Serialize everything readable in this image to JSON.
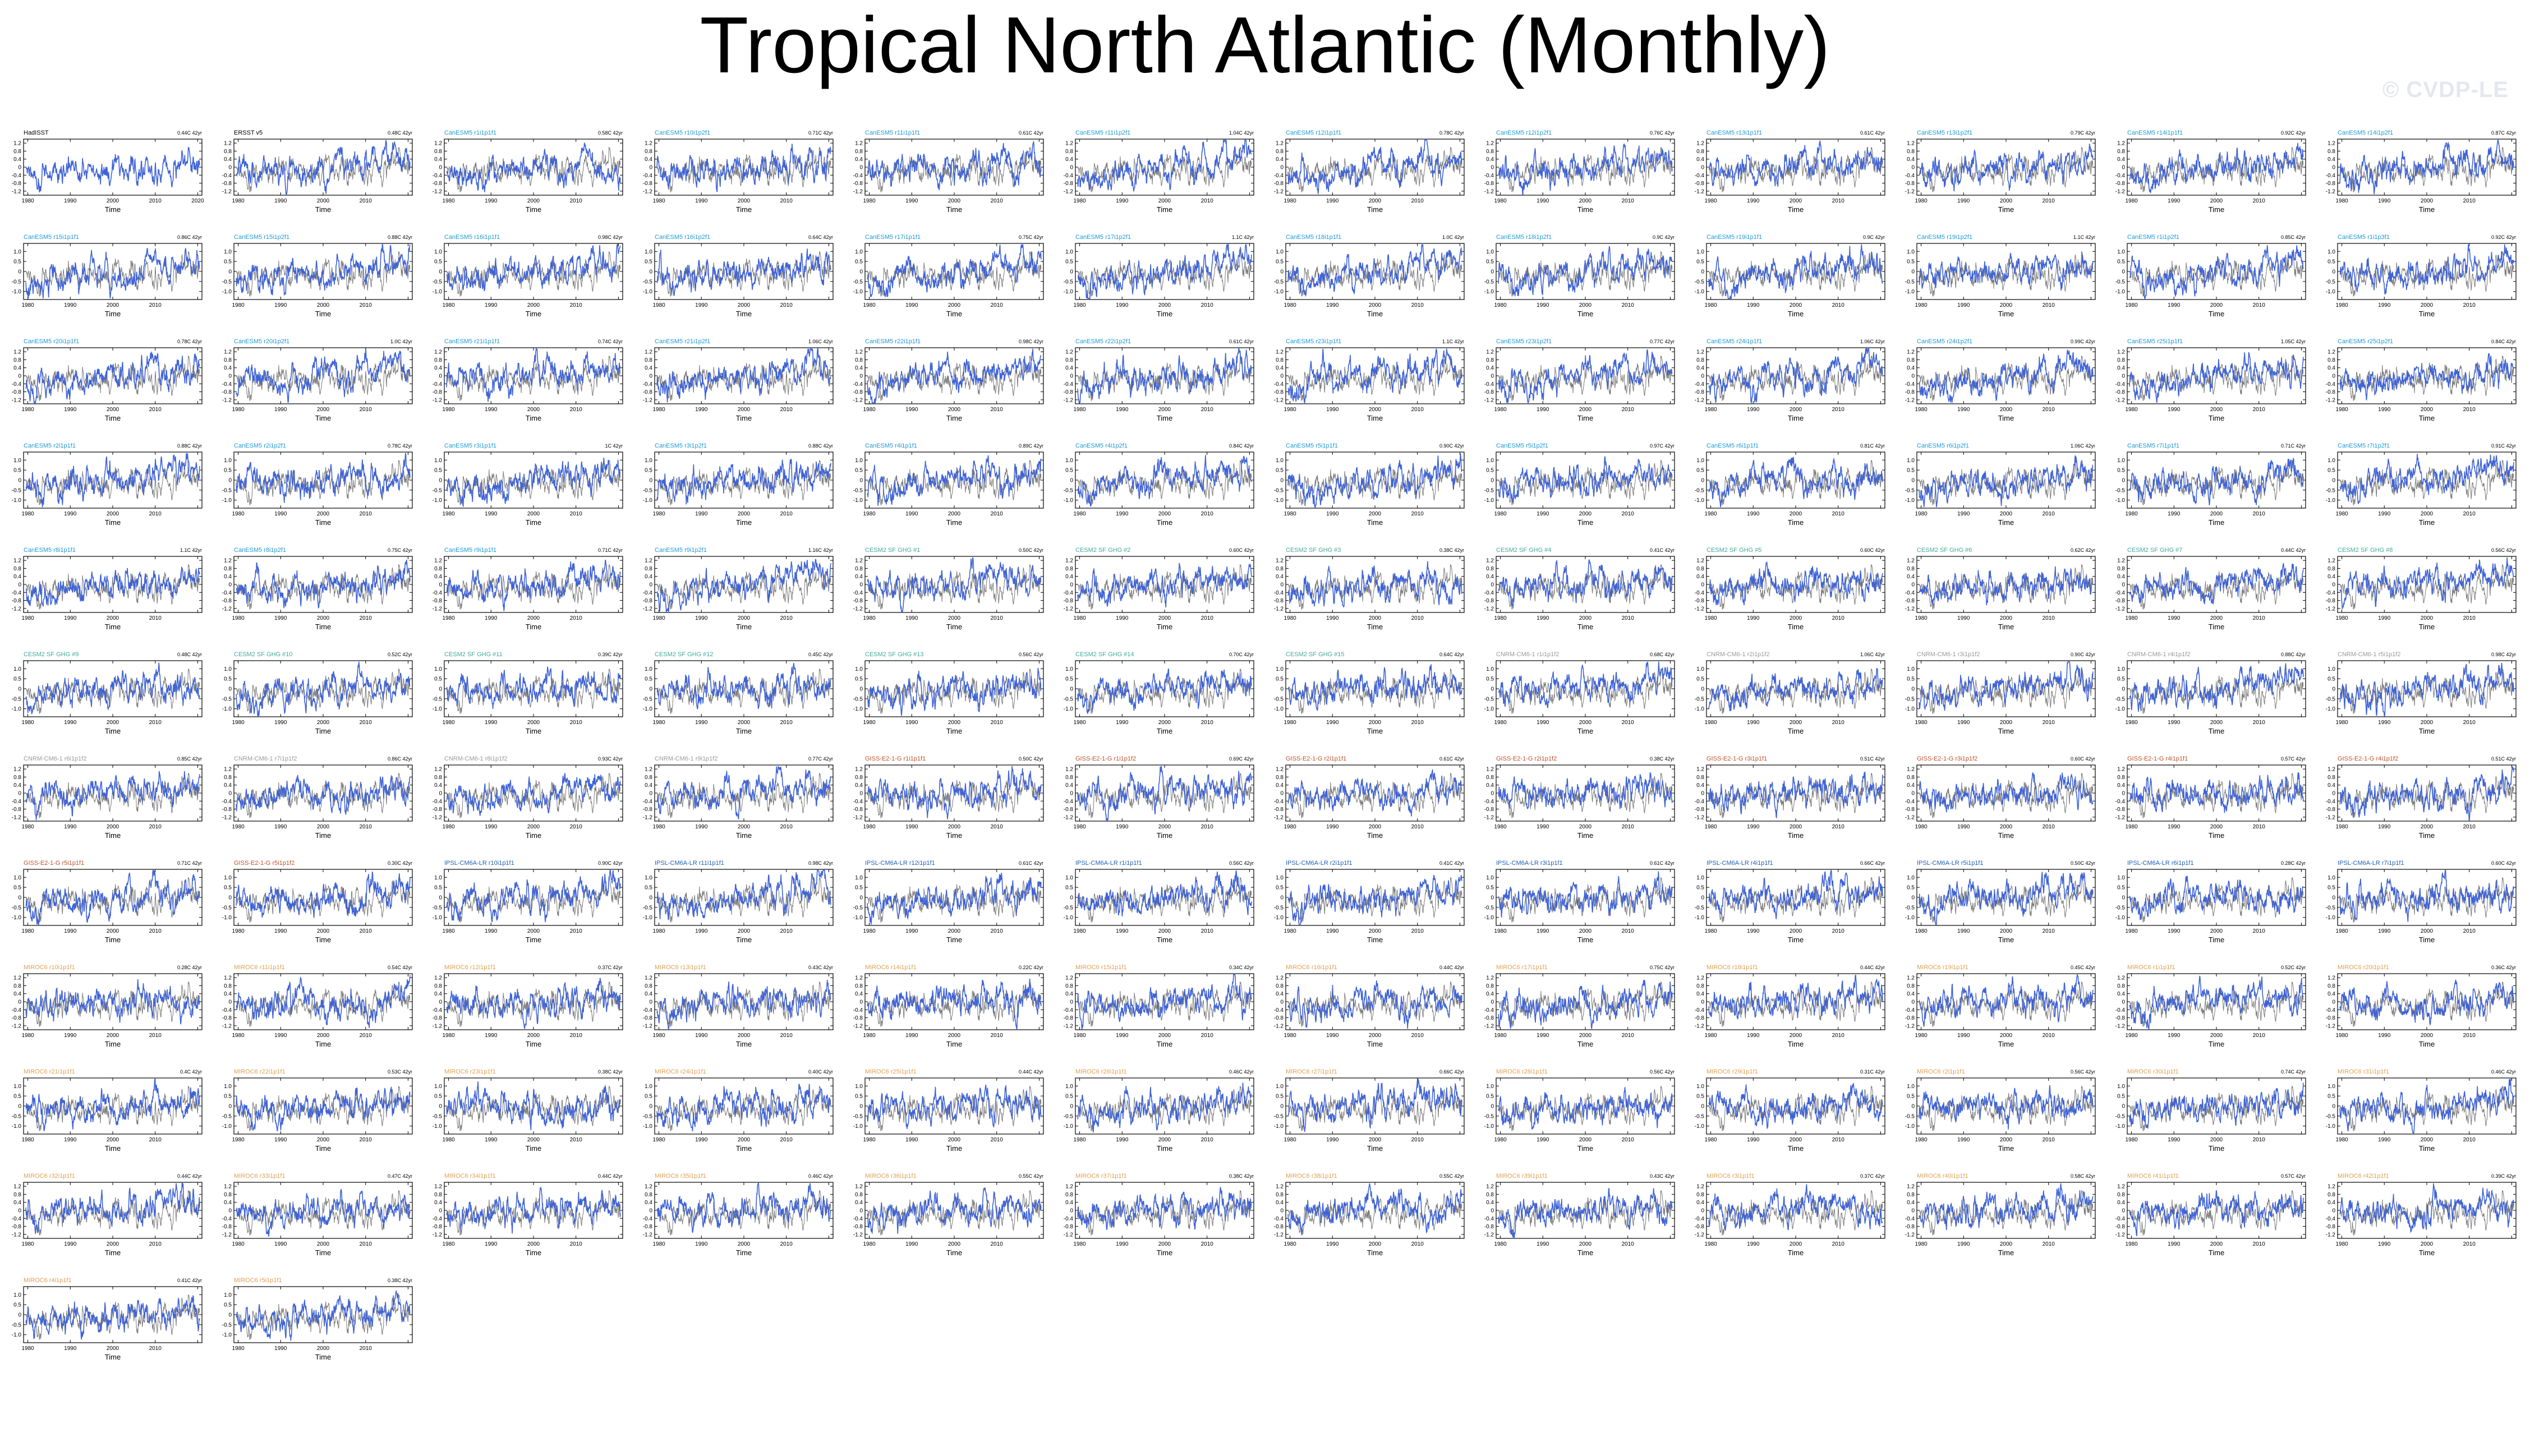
{
  "page": {
    "title": "Tropical North Atlantic (Monthly)",
    "watermark": "© CVDP-LE"
  },
  "colors": {
    "model_line": "#3f63d6",
    "obs_line": "#7a7a7a",
    "axis": "#000000",
    "CanESM5": "#1f9ad6",
    "CESM2": "#44a89e",
    "CNRM": "#9a9a9a",
    "GISS": "#c0522a",
    "IPSL": "#2060b8",
    "MIROC6": "#e0a050",
    "obs": "#000000"
  },
  "chart_data": {
    "type": "line",
    "xlabel": "Time",
    "xticks": [
      "1980",
      "1990",
      "2000",
      "2010",
      "2020"
    ],
    "xlim": [
      1979,
      2021
    ],
    "ylim": [
      -1.4,
      1.4
    ],
    "yticks_odd_rows": [
      "1.2",
      "0.8",
      "0.4",
      "0",
      "-0.4",
      "-0.8",
      "-1.2"
    ],
    "yticks_even_rows": [
      "1.0",
      "0.5",
      "0",
      "-0.5",
      "-1.0"
    ],
    "series_description": "blue = model/observation monthly TNA anomaly; grey = HadISST reference",
    "panels": [
      {
        "label": "HadISST",
        "group": "obs",
        "trend": "0.44C 42yr"
      },
      {
        "label": "ERSST v5",
        "group": "obs",
        "trend": "0.48C 42yr"
      },
      {
        "label": "CanESM5 r1i1p1f1",
        "group": "CanESM5",
        "trend": "0.58C 42yr"
      },
      {
        "label": "CanESM5 r10i1p2f1",
        "group": "CanESM5",
        "trend": "0.71C 42yr"
      },
      {
        "label": "CanESM5 r11i1p1f1",
        "group": "CanESM5",
        "trend": "0.61C 42yr"
      },
      {
        "label": "CanESM5 r11i1p2f1",
        "group": "CanESM5",
        "trend": "1.04C 42yr"
      },
      {
        "label": "CanESM5 r12i1p1f1",
        "group": "CanESM5",
        "trend": "0.78C 42yr"
      },
      {
        "label": "CanESM5 r12i1p2f1",
        "group": "CanESM5",
        "trend": "0.76C 42yr"
      },
      {
        "label": "CanESM5 r13i1p1f1",
        "group": "CanESM5",
        "trend": "0.61C 42yr"
      },
      {
        "label": "CanESM5 r13i1p2f1",
        "group": "CanESM5",
        "trend": "0.79C 42yr"
      },
      {
        "label": "CanESM5 r14i1p1f1",
        "group": "CanESM5",
        "trend": "0.92C 42yr"
      },
      {
        "label": "CanESM5 r14i1p2f1",
        "group": "CanESM5",
        "trend": "0.87C 42yr"
      },
      {
        "label": "CanESM5 r15i1p1f1",
        "group": "CanESM5",
        "trend": "0.86C 42yr"
      },
      {
        "label": "CanESM5 r15i1p2f1",
        "group": "CanESM5",
        "trend": "0.88C 42yr"
      },
      {
        "label": "CanESM5 r16i1p1f1",
        "group": "CanESM5",
        "trend": "0.98C 42yr"
      },
      {
        "label": "CanESM5 r16i1p2f1",
        "group": "CanESM5",
        "trend": "0.64C 42yr"
      },
      {
        "label": "CanESM5 r17i1p1f1",
        "group": "CanESM5",
        "trend": "0.75C 42yr"
      },
      {
        "label": "CanESM5 r17i1p2f1",
        "group": "CanESM5",
        "trend": "1.1C 42yr"
      },
      {
        "label": "CanESM5 r18i1p1f1",
        "group": "CanESM5",
        "trend": "1.0C 42yr"
      },
      {
        "label": "CanESM5 r18i1p2f1",
        "group": "CanESM5",
        "trend": "0.9C 42yr"
      },
      {
        "label": "CanESM5 r19i1p1f1",
        "group": "CanESM5",
        "trend": "0.9C 42yr"
      },
      {
        "label": "CanESM5 r19i1p2f1",
        "group": "CanESM5",
        "trend": "1.1C 42yr"
      },
      {
        "label": "CanESM5 r1i1p2f1",
        "group": "CanESM5",
        "trend": "0.85C 42yr"
      },
      {
        "label": "CanESM5 r1i1p3f1",
        "group": "CanESM5",
        "trend": "0.92C 42yr"
      },
      {
        "label": "CanESM5 r20i1p1f1",
        "group": "CanESM5",
        "trend": "0.78C 42yr"
      },
      {
        "label": "CanESM5 r20i1p2f1",
        "group": "CanESM5",
        "trend": "1.0C 42yr"
      },
      {
        "label": "CanESM5 r21i1p1f1",
        "group": "CanESM5",
        "trend": "0.74C 42yr"
      },
      {
        "label": "CanESM5 r21i1p2f1",
        "group": "CanESM5",
        "trend": "1.06C 42yr"
      },
      {
        "label": "CanESM5 r22i1p1f1",
        "group": "CanESM5",
        "trend": "0.98C 42yr"
      },
      {
        "label": "CanESM5 r22i1p2f1",
        "group": "CanESM5",
        "trend": "0.61C 42yr"
      },
      {
        "label": "CanESM5 r23i1p1f1",
        "group": "CanESM5",
        "trend": "1.1C 42yr"
      },
      {
        "label": "CanESM5 r23i1p2f1",
        "group": "CanESM5",
        "trend": "0.77C 42yr"
      },
      {
        "label": "CanESM5 r24i1p1f1",
        "group": "CanESM5",
        "trend": "1.06C 42yr"
      },
      {
        "label": "CanESM5 r24i1p2f1",
        "group": "CanESM5",
        "trend": "0.99C 42yr"
      },
      {
        "label": "CanESM5 r25i1p1f1",
        "group": "CanESM5",
        "trend": "1.05C 42yr"
      },
      {
        "label": "CanESM5 r25i1p2f1",
        "group": "CanESM5",
        "trend": "0.84C 42yr"
      },
      {
        "label": "CanESM5 r2i1p1f1",
        "group": "CanESM5",
        "trend": "0.88C 42yr"
      },
      {
        "label": "CanESM5 r2i1p2f1",
        "group": "CanESM5",
        "trend": "0.78C 42yr"
      },
      {
        "label": "CanESM5 r3i1p1f1",
        "group": "CanESM5",
        "trend": "1C 42yr"
      },
      {
        "label": "CanESM5 r3i1p2f1",
        "group": "CanESM5",
        "trend": "0.88C 42yr"
      },
      {
        "label": "CanESM5 r4i1p1f1",
        "group": "CanESM5",
        "trend": "0.89C 42yr"
      },
      {
        "label": "CanESM5 r4i1p2f1",
        "group": "CanESM5",
        "trend": "0.84C 42yr"
      },
      {
        "label": "CanESM5 r5i1p1f1",
        "group": "CanESM5",
        "trend": "0.90C 42yr"
      },
      {
        "label": "CanESM5 r5i1p2f1",
        "group": "CanESM5",
        "trend": "0.97C 42yr"
      },
      {
        "label": "CanESM5 r6i1p1f1",
        "group": "CanESM5",
        "trend": "0.81C 42yr"
      },
      {
        "label": "CanESM5 r6i1p2f1",
        "group": "CanESM5",
        "trend": "1.06C 42yr"
      },
      {
        "label": "CanESM5 r7i1p1f1",
        "group": "CanESM5",
        "trend": "0.71C 42yr"
      },
      {
        "label": "CanESM5 r7i1p2f1",
        "group": "CanESM5",
        "trend": "0.91C 42yr"
      },
      {
        "label": "CanESM5 r8i1p1f1",
        "group": "CanESM5",
        "trend": "1.1C 42yr"
      },
      {
        "label": "CanESM5 r8i1p2f1",
        "group": "CanESM5",
        "trend": "0.75C 42yr"
      },
      {
        "label": "CanESM5 r9i1p1f1",
        "group": "CanESM5",
        "trend": "0.71C 42yr"
      },
      {
        "label": "CanESM5 r9i1p2f1",
        "group": "CanESM5",
        "trend": "1.16C 42yr"
      },
      {
        "label": "CESM2 SF GHG #1",
        "group": "CESM2",
        "trend": "0.50C 42yr"
      },
      {
        "label": "CESM2 SF GHG #2",
        "group": "CESM2",
        "trend": "0.60C 42yr"
      },
      {
        "label": "CESM2 SF GHG #3",
        "group": "CESM2",
        "trend": "0.38C 42yr"
      },
      {
        "label": "CESM2 SF GHG #4",
        "group": "CESM2",
        "trend": "0.41C 42yr"
      },
      {
        "label": "CESM2 SF GHG #5",
        "group": "CESM2",
        "trend": "0.60C 42yr"
      },
      {
        "label": "CESM2 SF GHG #6",
        "group": "CESM2",
        "trend": "0.62C 42yr"
      },
      {
        "label": "CESM2 SF GHG #7",
        "group": "CESM2",
        "trend": "0.44C 42yr"
      },
      {
        "label": "CESM2 SF GHG #8",
        "group": "CESM2",
        "trend": "0.56C 42yr"
      },
      {
        "label": "CESM2 SF GHG #9",
        "group": "CESM2",
        "trend": "0.48C 42yr"
      },
      {
        "label": "CESM2 SF GHG #10",
        "group": "CESM2",
        "trend": "0.52C 42yr"
      },
      {
        "label": "CESM2 SF GHG #11",
        "group": "CESM2",
        "trend": "0.39C 42yr"
      },
      {
        "label": "CESM2 SF GHG #12",
        "group": "CESM2",
        "trend": "0.45C 42yr"
      },
      {
        "label": "CESM2 SF GHG #13",
        "group": "CESM2",
        "trend": "0.56C 42yr"
      },
      {
        "label": "CESM2 SF GHG #14",
        "group": "CESM2",
        "trend": "0.70C 42yr"
      },
      {
        "label": "CESM2 SF GHG #15",
        "group": "CESM2",
        "trend": "0.64C 42yr"
      },
      {
        "label": "CNRM-CM6-1 r1i1p1f2",
        "group": "CNRM",
        "trend": "0.68C 42yr"
      },
      {
        "label": "CNRM-CM6-1 r2i1p1f2",
        "group": "CNRM",
        "trend": "1.06C 42yr"
      },
      {
        "label": "CNRM-CM6-1 r3i1p1f2",
        "group": "CNRM",
        "trend": "0.90C 42yr"
      },
      {
        "label": "CNRM-CM6-1 r4i1p1f2",
        "group": "CNRM",
        "trend": "0.88C 42yr"
      },
      {
        "label": "CNRM-CM6-1 r5i1p1f2",
        "group": "CNRM",
        "trend": "0.98C 42yr"
      },
      {
        "label": "CNRM-CM6-1 r6i1p1f2",
        "group": "CNRM",
        "trend": "0.85C 42yr"
      },
      {
        "label": "CNRM-CM6-1 r7i1p1f2",
        "group": "CNRM",
        "trend": "0.86C 42yr"
      },
      {
        "label": "CNRM-CM6-1 r8i1p1f2",
        "group": "CNRM",
        "trend": "0.93C 42yr"
      },
      {
        "label": "CNRM-CM6-1 r9i1p1f2",
        "group": "CNRM",
        "trend": "0.77C 42yr"
      },
      {
        "label": "GISS-E2-1-G r1i1p1f1",
        "group": "GISS",
        "trend": "0.50C 42yr"
      },
      {
        "label": "GISS-E2-1-G r1i1p1f2",
        "group": "GISS",
        "trend": "0.69C 42yr"
      },
      {
        "label": "GISS-E2-1-G r2i1p1f1",
        "group": "GISS",
        "trend": "0.61C 42yr"
      },
      {
        "label": "GISS-E2-1-G r2i1p1f2",
        "group": "GISS",
        "trend": "0.38C 42yr"
      },
      {
        "label": "GISS-E2-1-G r3i1p1f1",
        "group": "GISS",
        "trend": "0.51C 42yr"
      },
      {
        "label": "GISS-E2-1-G r3i1p1f2",
        "group": "GISS",
        "trend": "0.60C 42yr"
      },
      {
        "label": "GISS-E2-1-G r4i1p1f1",
        "group": "GISS",
        "trend": "0.57C 42yr"
      },
      {
        "label": "GISS-E2-1-G r4i1p1f2",
        "group": "GISS",
        "trend": "0.51C 42yr"
      },
      {
        "label": "GISS-E2-1-G r5i1p1f1",
        "group": "GISS",
        "trend": "0.71C 42yr"
      },
      {
        "label": "GISS-E2-1-G r5i1p1f2",
        "group": "GISS",
        "trend": "0.30C 42yr"
      },
      {
        "label": "IPSL-CM6A-LR r10i1p1f1",
        "group": "IPSL",
        "trend": "0.90C 42yr"
      },
      {
        "label": "IPSL-CM6A-LR r11i1p1f1",
        "group": "IPSL",
        "trend": "0.98C 42yr"
      },
      {
        "label": "IPSL-CM6A-LR r12i1p1f1",
        "group": "IPSL",
        "trend": "0.61C 42yr"
      },
      {
        "label": "IPSL-CM6A-LR r1i1p1f1",
        "group": "IPSL",
        "trend": "0.56C 42yr"
      },
      {
        "label": "IPSL-CM6A-LR r2i1p1f1",
        "group": "IPSL",
        "trend": "0.41C 42yr"
      },
      {
        "label": "IPSL-CM6A-LR r3i1p1f1",
        "group": "IPSL",
        "trend": "0.61C 42yr"
      },
      {
        "label": "IPSL-CM6A-LR r4i1p1f1",
        "group": "IPSL",
        "trend": "0.66C 42yr"
      },
      {
        "label": "IPSL-CM6A-LR r5i1p1f1",
        "group": "IPSL",
        "trend": "0.50C 42yr"
      },
      {
        "label": "IPSL-CM6A-LR r6i1p1f1",
        "group": "IPSL",
        "trend": "0.28C 42yr"
      },
      {
        "label": "IPSL-CM6A-LR r7i1p1f1",
        "group": "IPSL",
        "trend": "0.60C 42yr"
      },
      {
        "label": "MIROC6 r10i1p1f1",
        "group": "MIROC6",
        "trend": "0.28C 42yr"
      },
      {
        "label": "MIROC6 r11i1p1f1",
        "group": "MIROC6",
        "trend": "0.54C 42yr"
      },
      {
        "label": "MIROC6 r12i1p1f1",
        "group": "MIROC6",
        "trend": "0.37C 42yr"
      },
      {
        "label": "MIROC6 r13i1p1f1",
        "group": "MIROC6",
        "trend": "0.43C 42yr"
      },
      {
        "label": "MIROC6 r14i1p1f1",
        "group": "MIROC6",
        "trend": "0.22C 42yr"
      },
      {
        "label": "MIROC6 r15i1p1f1",
        "group": "MIROC6",
        "trend": "0.34C 42yr"
      },
      {
        "label": "MIROC6 r16i1p1f1",
        "group": "MIROC6",
        "trend": "0.44C 42yr"
      },
      {
        "label": "MIROC6 r17i1p1f1",
        "group": "MIROC6",
        "trend": "0.75C 42yr"
      },
      {
        "label": "MIROC6 r18i1p1f1",
        "group": "MIROC6",
        "trend": "0.44C 42yr"
      },
      {
        "label": "MIROC6 r19i1p1f1",
        "group": "MIROC6",
        "trend": "0.45C 42yr"
      },
      {
        "label": "MIROC6 r1i1p1f1",
        "group": "MIROC6",
        "trend": "0.52C 42yr"
      },
      {
        "label": "MIROC6 r20i1p1f1",
        "group": "MIROC6",
        "trend": "0.36C 42yr"
      },
      {
        "label": "MIROC6 r21i1p1f1",
        "group": "MIROC6",
        "trend": "0.4C 42yr"
      },
      {
        "label": "MIROC6 r22i1p1f1",
        "group": "MIROC6",
        "trend": "0.53C 42yr"
      },
      {
        "label": "MIROC6 r23i1p1f1",
        "group": "MIROC6",
        "trend": "0.38C 42yr"
      },
      {
        "label": "MIROC6 r24i1p1f1",
        "group": "MIROC6",
        "trend": "0.40C 42yr"
      },
      {
        "label": "MIROC6 r25i1p1f1",
        "group": "MIROC6",
        "trend": "0.44C 42yr"
      },
      {
        "label": "MIROC6 r26i1p1f1",
        "group": "MIROC6",
        "trend": "0.46C 42yr"
      },
      {
        "label": "MIROC6 r27i1p1f1",
        "group": "MIROC6",
        "trend": "0.66C 42yr"
      },
      {
        "label": "MIROC6 r28i1p1f1",
        "group": "MIROC6",
        "trend": "0.56C 42yr"
      },
      {
        "label": "MIROC6 r29i1p1f1",
        "group": "MIROC6",
        "trend": "0.31C 42yr"
      },
      {
        "label": "MIROC6 r2i1p1f1",
        "group": "MIROC6",
        "trend": "0.56C 42yr"
      },
      {
        "label": "MIROC6 r30i1p1f1",
        "group": "MIROC6",
        "trend": "0.74C 42yr"
      },
      {
        "label": "MIROC6 r31i1p1f1",
        "group": "MIROC6",
        "trend": "0.46C 42yr"
      },
      {
        "label": "MIROC6 r32i1p1f1",
        "group": "MIROC6",
        "trend": "0.44C 42yr"
      },
      {
        "label": "MIROC6 r33i1p1f1",
        "group": "MIROC6",
        "trend": "0.47C 42yr"
      },
      {
        "label": "MIROC6 r34i1p1f1",
        "group": "MIROC6",
        "trend": "0.44C 42yr"
      },
      {
        "label": "MIROC6 r35i1p1f1",
        "group": "MIROC6",
        "trend": "0.46C 42yr"
      },
      {
        "label": "MIROC6 r36i1p1f1",
        "group": "MIROC6",
        "trend": "0.55C 42yr"
      },
      {
        "label": "MIROC6 r37i1p1f1",
        "group": "MIROC6",
        "trend": "0.38C 42yr"
      },
      {
        "label": "MIROC6 r38i1p1f1",
        "group": "MIROC6",
        "trend": "0.55C 42yr"
      },
      {
        "label": "MIROC6 r39i1p1f1",
        "group": "MIROC6",
        "trend": "0.43C 42yr"
      },
      {
        "label": "MIROC6 r3i1p1f1",
        "group": "MIROC6",
        "trend": "0.37C 42yr"
      },
      {
        "label": "MIROC6 r40i1p1f1",
        "group": "MIROC6",
        "trend": "0.58C 42yr"
      },
      {
        "label": "MIROC6 r41i1p1f1",
        "group": "MIROC6",
        "trend": "0.57C 42yr"
      },
      {
        "label": "MIROC6 r42i1p1f1",
        "group": "MIROC6",
        "trend": "0.39C 42yr"
      },
      {
        "label": "MIROC6 r4i1p1f1",
        "group": "MIROC6",
        "trend": "0.41C 42yr"
      },
      {
        "label": "MIROC6 r5i1p1f1",
        "group": "MIROC6",
        "trend": "0.38C 42yr"
      }
    ]
  }
}
